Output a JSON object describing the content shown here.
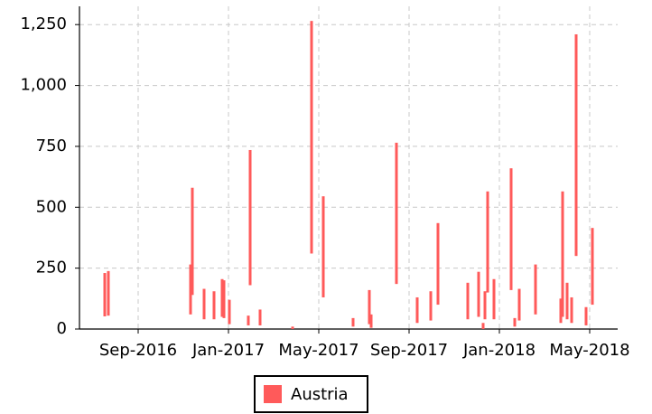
{
  "chart_data": {
    "type": "range_bar",
    "x": [
      6.52,
      6.68,
      10.32,
      10.4,
      10.92,
      11.36,
      11.72,
      11.8,
      12.04,
      12.88,
      12.96,
      13.4,
      14.84,
      15.68,
      16.2,
      17.52,
      18.24,
      18.32,
      19.44,
      20.36,
      20.96,
      21.28,
      22.6,
      23.08,
      23.28,
      23.36,
      23.48,
      23.76,
      24.52,
      24.68,
      24.88,
      25.6,
      26.72,
      26.8,
      27,
      27.2,
      27.4,
      27.84,
      28.12
    ],
    "series": [
      {
        "name": "Austria",
        "color": "#ff5a5a",
        "low": [
          52,
          55,
          60,
          140,
          40,
          40,
          50,
          45,
          20,
          15,
          180,
          15,
          0,
          310,
          130,
          10,
          20,
          5,
          185,
          25,
          35,
          100,
          40,
          50,
          0,
          40,
          150,
          40,
          160,
          10,
          35,
          60,
          25,
          50,
          40,
          25,
          300,
          15,
          100
        ],
        "high": [
          230,
          238,
          265,
          580,
          165,
          155,
          205,
          200,
          120,
          55,
          735,
          80,
          10,
          1265,
          545,
          45,
          160,
          60,
          765,
          130,
          155,
          435,
          190,
          235,
          25,
          155,
          565,
          205,
          660,
          45,
          165,
          265,
          125,
          565,
          190,
          130,
          1210,
          90,
          415
        ]
      }
    ],
    "xlim": [
      5.4,
      29.24
    ],
    "xticks": [
      {
        "value": 8,
        "label": "Sep-2016"
      },
      {
        "value": 12,
        "label": "Jan-2017"
      },
      {
        "value": 16,
        "label": "May-2017"
      },
      {
        "value": 20,
        "label": "Sep-2017"
      },
      {
        "value": 24,
        "label": "Jan-2018"
      },
      {
        "value": 28,
        "label": "May-2018"
      }
    ],
    "ylim": [
      0,
      1325
    ],
    "yticks": [
      0,
      250,
      500,
      750,
      {
        "value": 1000,
        "label": "1,000"
      },
      {
        "value": 1250,
        "label": "1,250"
      }
    ],
    "grid": true,
    "legend": "bottom"
  }
}
